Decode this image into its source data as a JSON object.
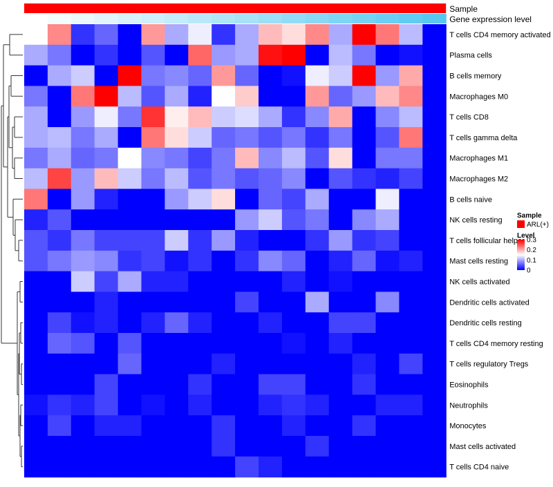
{
  "chart_data": {
    "type": "heatmap",
    "annotations": [
      {
        "label": "Sample",
        "color": "#ff0000"
      },
      {
        "label": "Gene expression level",
        "gradient": [
          "#ffffff",
          "#58c8f0"
        ]
      }
    ],
    "rows": [
      "T cells CD4 memory activated",
      "Plasma cells",
      "B cells memory",
      "Macrophages M0",
      "T cells CD8",
      "T cells gamma delta",
      "Macrophages M1",
      "Macrophages M2",
      "B cells naive",
      "NK cells resting",
      "T cells follicular helper",
      "Mast cells resting",
      "NK cells activated",
      "Dendritic cells activated",
      "Dendritic cells resting",
      "T cells CD4 memory resting",
      "T cells regulatory  Tregs",
      "Eosinophils",
      "Neutrophils",
      "Monocytes",
      "Mast cells activated",
      "T cells CD4 naive"
    ],
    "n_columns": 18,
    "values": [
      [
        0.15,
        0.22,
        0.03,
        0.06,
        0.0,
        0.21,
        0.1,
        0.14,
        0.03,
        0.1,
        0.19,
        0.17,
        0.22,
        0.1,
        0.3,
        0.23,
        0.11,
        0.0
      ],
      [
        0.1,
        0.07,
        0.0,
        0.03,
        0.0,
        0.05,
        0.0,
        0.24,
        0.09,
        0.1,
        0.29,
        0.3,
        0.0,
        0.11,
        0.07,
        0.0,
        0.01,
        0.0
      ],
      [
        0.0,
        0.1,
        0.12,
        0.0,
        0.3,
        0.07,
        0.08,
        0.06,
        0.21,
        0.06,
        0.0,
        0.01,
        0.14,
        0.12,
        0.3,
        0.09,
        0.2,
        0.0
      ],
      [
        0.07,
        0.0,
        0.23,
        0.3,
        0.11,
        0.05,
        0.1,
        0.02,
        0.15,
        0.18,
        0.0,
        0.0,
        0.21,
        0.06,
        0.09,
        0.19,
        0.22,
        0.0
      ],
      [
        0.1,
        0.0,
        0.09,
        0.14,
        0.07,
        0.27,
        0.16,
        0.19,
        0.12,
        0.13,
        0.1,
        0.03,
        0.08,
        0.2,
        0.0,
        0.08,
        0.11,
        0.0
      ],
      [
        0.1,
        0.11,
        0.07,
        0.1,
        0.0,
        0.23,
        0.17,
        0.12,
        0.06,
        0.07,
        0.05,
        0.07,
        0.03,
        0.07,
        0.0,
        0.05,
        0.23,
        0.0
      ],
      [
        0.07,
        0.1,
        0.06,
        0.07,
        0.15,
        0.08,
        0.07,
        0.04,
        0.07,
        0.19,
        0.08,
        0.11,
        0.05,
        0.17,
        0.0,
        0.07,
        0.07,
        0.0
      ],
      [
        0.11,
        0.26,
        0.09,
        0.19,
        0.12,
        0.07,
        0.11,
        0.05,
        0.07,
        0.05,
        0.06,
        0.08,
        0.0,
        0.05,
        0.03,
        0.02,
        0.04,
        0.0
      ],
      [
        0.23,
        0.0,
        0.09,
        0.02,
        0.0,
        0.0,
        0.09,
        0.12,
        0.17,
        0.0,
        0.06,
        0.04,
        0.1,
        0.0,
        0.0,
        0.14,
        0.0,
        0.0
      ],
      [
        0.02,
        0.05,
        0.0,
        0.0,
        0.0,
        0.0,
        0.0,
        0.0,
        0.0,
        0.09,
        0.12,
        0.05,
        0.07,
        0.0,
        0.08,
        0.1,
        0.0,
        0.0
      ],
      [
        0.05,
        0.03,
        0.07,
        0.04,
        0.04,
        0.04,
        0.12,
        0.03,
        0.09,
        0.02,
        0.0,
        0.0,
        0.03,
        0.09,
        0.03,
        0.04,
        0.0,
        0.0
      ],
      [
        0.05,
        0.07,
        0.09,
        0.08,
        0.03,
        0.04,
        0.01,
        0.03,
        0.0,
        0.03,
        0.08,
        0.06,
        0.0,
        0.02,
        0.06,
        0.01,
        0.02,
        0.0
      ],
      [
        0.0,
        0.0,
        0.12,
        0.04,
        0.1,
        0.02,
        0.02,
        0.0,
        0.0,
        0.0,
        0.0,
        0.02,
        0.0,
        0.01,
        0.0,
        0.0,
        0.0,
        0.0
      ],
      [
        0.0,
        0.0,
        0.0,
        0.02,
        0.0,
        0.0,
        0.0,
        0.0,
        0.0,
        0.04,
        0.0,
        0.0,
        0.1,
        0.0,
        0.0,
        0.08,
        0.0,
        0.0
      ],
      [
        0.0,
        0.04,
        0.01,
        0.02,
        0.0,
        0.02,
        0.06,
        0.02,
        0.0,
        0.0,
        0.02,
        0.0,
        0.0,
        0.04,
        0.04,
        0.0,
        0.0,
        0.0
      ],
      [
        0.0,
        0.06,
        0.05,
        0.0,
        0.05,
        0.0,
        0.0,
        0.0,
        0.0,
        0.0,
        0.0,
        0.01,
        0.0,
        0.02,
        0.0,
        0.0,
        0.0,
        0.0
      ],
      [
        0.0,
        0.0,
        0.0,
        0.0,
        0.06,
        0.0,
        0.0,
        0.0,
        0.02,
        0.0,
        0.0,
        0.0,
        0.0,
        0.0,
        0.02,
        0.0,
        0.04,
        0.0
      ],
      [
        0.0,
        0.0,
        0.0,
        0.04,
        0.0,
        0.0,
        0.0,
        0.03,
        0.0,
        0.0,
        0.04,
        0.04,
        0.0,
        0.0,
        0.03,
        0.0,
        0.0,
        0.0
      ],
      [
        0.01,
        0.03,
        0.02,
        0.04,
        0.0,
        0.01,
        0.0,
        0.02,
        0.0,
        0.0,
        0.02,
        0.03,
        0.02,
        0.0,
        0.0,
        0.02,
        0.02,
        0.0
      ],
      [
        0.0,
        0.04,
        0.0,
        0.02,
        0.02,
        0.0,
        0.0,
        0.0,
        0.03,
        0.0,
        0.0,
        0.02,
        0.0,
        0.0,
        0.03,
        0.0,
        0.0,
        0.0
      ],
      [
        0.0,
        0.0,
        0.0,
        0.0,
        0.0,
        0.0,
        0.0,
        0.0,
        0.03,
        0.0,
        0.0,
        0.0,
        0.03,
        0.0,
        0.0,
        0.0,
        0.0,
        0.0
      ],
      [
        0.0,
        0.0,
        0.0,
        0.0,
        0.0,
        0.0,
        0.0,
        0.0,
        0.0,
        0.04,
        0.02,
        0.0,
        0.0,
        0.0,
        0.0,
        0.0,
        0.0,
        0.0
      ]
    ],
    "color_scale": {
      "range": [
        0,
        0.3
      ],
      "stops": [
        {
          "value": 0,
          "color": "#0000ff"
        },
        {
          "value": 0.15,
          "color": "#ffffff"
        },
        {
          "value": 0.3,
          "color": "#ff0000"
        }
      ]
    },
    "legend": {
      "sample_title": "Sample",
      "sample_entry": "ARL(+)",
      "level_title": "Level",
      "ticks": [
        {
          "value": 0.3,
          "label": "0.3"
        },
        {
          "value": 0.2,
          "label": "0.2"
        },
        {
          "value": 0.1,
          "label": "0.1"
        },
        {
          "value": 0,
          "label": "0"
        }
      ]
    },
    "dendrogram": "row clustering tree on the left"
  }
}
